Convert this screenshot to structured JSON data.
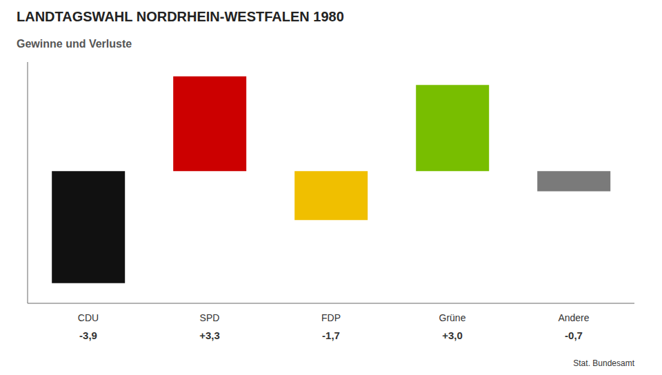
{
  "chart_data": {
    "type": "bar",
    "title": "LANDTAGSWAHL NORDRHEIN-WESTFALEN 1980",
    "subtitle": "Gewinne und Verluste",
    "categories": [
      "CDU",
      "SPD",
      "FDP",
      "Grüne",
      "Andere"
    ],
    "values": [
      -3.9,
      3.3,
      -1.7,
      3.0,
      -0.7
    ],
    "value_labels": [
      "-3,9",
      "+3,3",
      "-1,7",
      "+3,0",
      "-0,7"
    ],
    "colors": [
      "#111111",
      "#CC0000",
      "#F0BF00",
      "#78BE00",
      "#7a7a7a"
    ],
    "ylim": [
      -4.6,
      3.8
    ],
    "tick_labels": "x",
    "grid": false,
    "source": "Stat. Bundesamt"
  }
}
